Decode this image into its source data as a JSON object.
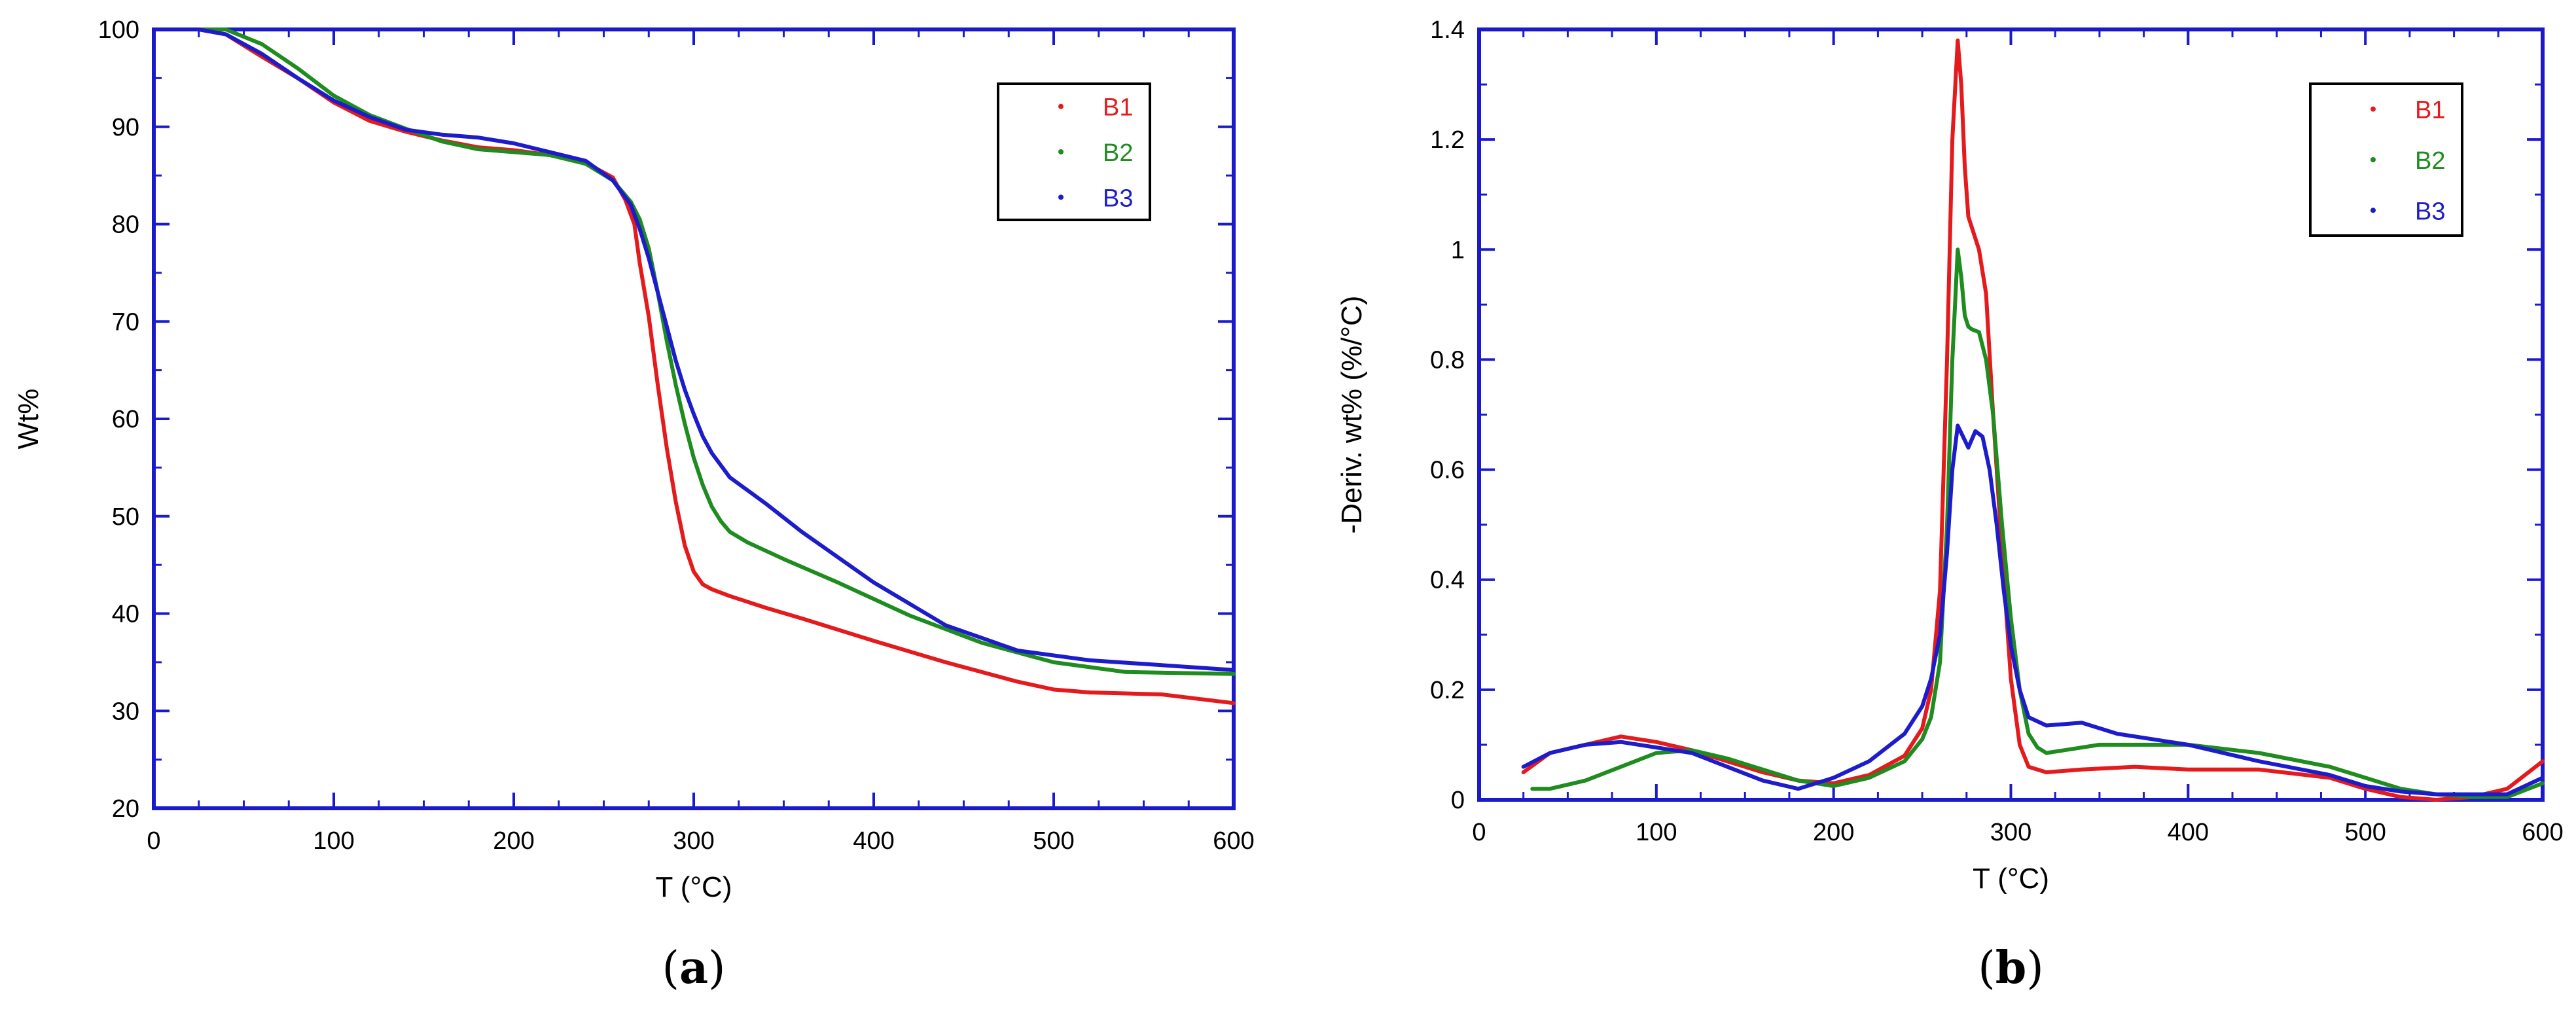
{
  "chart_data": [
    {
      "type": "line",
      "panel_label": "(a)",
      "panel_letter": "a",
      "title": "",
      "xlabel": "T (°C)",
      "ylabel": "Wt%",
      "xlim": [
        0,
        600
      ],
      "ylim": [
        20,
        100
      ],
      "xticks": [
        0,
        100,
        200,
        300,
        400,
        500,
        600
      ],
      "yticks": [
        20,
        30,
        40,
        50,
        60,
        70,
        80,
        90,
        100
      ],
      "grid": false,
      "legend_position": "top-right",
      "series": [
        {
          "name": "B1",
          "color": "#e41a1c",
          "x": [
            25,
            40,
            60,
            80,
            100,
            120,
            140,
            160,
            180,
            200,
            220,
            240,
            255,
            262,
            267,
            270,
            275,
            280,
            285,
            290,
            295,
            300,
            305,
            310,
            320,
            340,
            360,
            400,
            440,
            480,
            500,
            520,
            560,
            600
          ],
          "y": [
            100,
            99.5,
            97.2,
            95,
            92.5,
            90.6,
            89.5,
            88.6,
            87.9,
            87.6,
            87.1,
            86.3,
            84.8,
            82.5,
            80,
            76,
            70.5,
            63.5,
            57,
            51.5,
            47,
            44.3,
            43,
            42.5,
            41.8,
            40.6,
            39.5,
            37.2,
            35,
            33,
            32.2,
            31.9,
            31.7,
            30.8
          ]
        },
        {
          "name": "B2",
          "color": "#1e8c1e",
          "x": [
            25,
            40,
            60,
            80,
            100,
            120,
            140,
            160,
            180,
            200,
            220,
            240,
            255,
            265,
            270,
            275,
            280,
            285,
            290,
            295,
            300,
            305,
            310,
            315,
            320,
            330,
            350,
            380,
            420,
            460,
            500,
            540,
            600
          ],
          "y": [
            100,
            100,
            98.5,
            96,
            93.2,
            91.2,
            89.8,
            88.5,
            87.7,
            87.4,
            87.1,
            86.2,
            84.5,
            82.3,
            80.5,
            77.5,
            73,
            68,
            63.5,
            59.5,
            56,
            53.2,
            51,
            49.5,
            48.4,
            47.3,
            45.6,
            43.2,
            39.8,
            37,
            35,
            34,
            33.8
          ]
        },
        {
          "name": "B3",
          "color": "#1c1ccc",
          "x": [
            25,
            40,
            60,
            80,
            100,
            120,
            140,
            160,
            180,
            200,
            220,
            240,
            255,
            265,
            270,
            275,
            280,
            285,
            290,
            295,
            300,
            305,
            310,
            320,
            340,
            360,
            400,
            440,
            480,
            520,
            560,
            600
          ],
          "y": [
            100,
            99.5,
            97.5,
            95,
            92.7,
            91,
            89.7,
            89.2,
            88.9,
            88.3,
            87.4,
            86.5,
            84.5,
            82,
            79.5,
            76.5,
            73,
            69.5,
            66,
            63,
            60.5,
            58.2,
            56.5,
            54,
            51.3,
            48.4,
            43.2,
            38.8,
            36.2,
            35.2,
            34.7,
            34.2
          ]
        }
      ]
    },
    {
      "type": "line",
      "panel_label": "(b)",
      "panel_letter": "b",
      "title": "",
      "xlabel": "T (°C)",
      "ylabel": "-Deriv. wt% (%/°C)",
      "xlim": [
        0,
        600
      ],
      "ylim": [
        0,
        1.4
      ],
      "xticks": [
        0,
        100,
        200,
        300,
        400,
        500,
        600
      ],
      "yticks": [
        0,
        0.2,
        0.4,
        0.6,
        0.8,
        1,
        1.2,
        1.4
      ],
      "grid": false,
      "legend_position": "top-right",
      "series": [
        {
          "name": "B1",
          "color": "#e41a1c",
          "x": [
            25,
            40,
            60,
            80,
            100,
            120,
            140,
            160,
            180,
            200,
            220,
            240,
            250,
            255,
            260,
            264,
            267,
            270,
            272,
            274,
            276,
            278,
            282,
            286,
            290,
            295,
            300,
            305,
            310,
            320,
            340,
            370,
            400,
            440,
            480,
            500,
            520,
            540,
            560,
            580,
            600
          ],
          "y": [
            0.05,
            0.085,
            0.1,
            0.115,
            0.105,
            0.09,
            0.07,
            0.05,
            0.035,
            0.03,
            0.045,
            0.08,
            0.13,
            0.2,
            0.38,
            0.8,
            1.2,
            1.38,
            1.3,
            1.15,
            1.06,
            1.04,
            1.0,
            0.92,
            0.7,
            0.45,
            0.22,
            0.1,
            0.06,
            0.05,
            0.055,
            0.06,
            0.055,
            0.055,
            0.04,
            0.02,
            0.005,
            0.0,
            0.005,
            0.02,
            0.07
          ]
        },
        {
          "name": "B2",
          "color": "#1e8c1e",
          "x": [
            30,
            40,
            60,
            80,
            100,
            120,
            140,
            160,
            180,
            200,
            220,
            240,
            250,
            255,
            260,
            264,
            267,
            270,
            272,
            274,
            276,
            278,
            282,
            286,
            290,
            295,
            300,
            305,
            310,
            315,
            320,
            330,
            350,
            380,
            400,
            440,
            480,
            500,
            520,
            540,
            560,
            580,
            600
          ],
          "y": [
            0.02,
            0.02,
            0.035,
            0.06,
            0.085,
            0.09,
            0.075,
            0.055,
            0.035,
            0.025,
            0.04,
            0.07,
            0.11,
            0.15,
            0.25,
            0.5,
            0.8,
            1.0,
            0.95,
            0.88,
            0.86,
            0.855,
            0.85,
            0.8,
            0.7,
            0.5,
            0.33,
            0.2,
            0.12,
            0.095,
            0.085,
            0.09,
            0.1,
            0.1,
            0.1,
            0.085,
            0.06,
            0.04,
            0.02,
            0.01,
            0.005,
            0.005,
            0.03
          ]
        },
        {
          "name": "B3",
          "color": "#1c1ccc",
          "x": [
            25,
            40,
            60,
            80,
            100,
            120,
            140,
            160,
            180,
            200,
            220,
            240,
            250,
            255,
            260,
            264,
            267,
            270,
            273,
            276,
            280,
            284,
            288,
            292,
            296,
            300,
            305,
            310,
            320,
            340,
            360,
            400,
            440,
            480,
            500,
            520,
            540,
            560,
            580,
            600
          ],
          "y": [
            0.06,
            0.085,
            0.1,
            0.105,
            0.095,
            0.085,
            0.06,
            0.035,
            0.02,
            0.04,
            0.07,
            0.12,
            0.17,
            0.22,
            0.3,
            0.45,
            0.6,
            0.68,
            0.66,
            0.64,
            0.67,
            0.66,
            0.6,
            0.5,
            0.38,
            0.28,
            0.2,
            0.15,
            0.135,
            0.14,
            0.12,
            0.1,
            0.07,
            0.045,
            0.025,
            0.015,
            0.01,
            0.01,
            0.01,
            0.04
          ]
        }
      ]
    }
  ]
}
